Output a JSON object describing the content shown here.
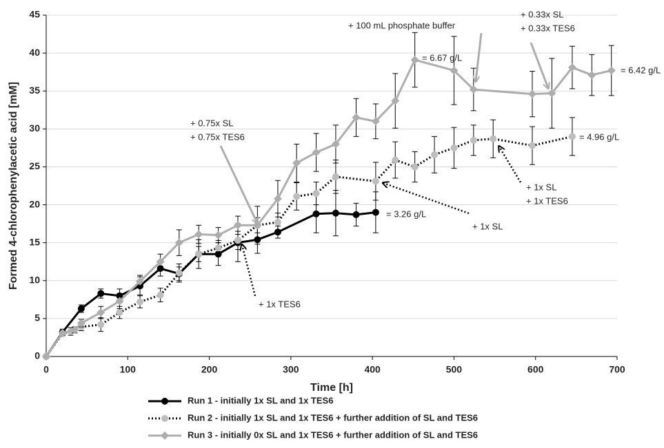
{
  "chart_data": {
    "type": "line",
    "x_label": "Time [h]",
    "y_label": "Formed 4-chlorophenylacetic acid [mM]",
    "xlim": [
      0,
      700
    ],
    "xticks": [
      0,
      100,
      200,
      300,
      400,
      500,
      600,
      700
    ],
    "ylim": [
      0,
      45
    ],
    "yticks": [
      0,
      5,
      10,
      15,
      20,
      25,
      30,
      35,
      40,
      45
    ],
    "grid": true,
    "legend": "bottom",
    "series": [
      {
        "name": "Run 1 - initially 1x SL and 1x TES6",
        "color": "#000000",
        "line_color": "#000000",
        "line_style": "solid",
        "marker": "circle",
        "x": [
          0,
          20,
          43,
          67,
          90,
          115,
          140,
          163,
          187,
          211,
          235,
          259,
          284,
          331,
          355,
          380,
          404
        ],
        "values": [
          0,
          3.2,
          6.3,
          8.3,
          8.0,
          9.3,
          11.6,
          10.9,
          13.5,
          13.5,
          15.0,
          15.4,
          16.4,
          18.8,
          18.9,
          18.7,
          19.0
        ],
        "errors": [
          0,
          0.4,
          0.5,
          0.6,
          0.9,
          1.2,
          1.0,
          0.9,
          1.9,
          1.5,
          2.5,
          1.8,
          0.8,
          2.5,
          3.0,
          1.5,
          2.7
        ]
      },
      {
        "name": "Run 2 - initially 1x SL and 1x TES6 + further addition of SL and TES6",
        "color": "#bdbdbd",
        "line_color": "#000000",
        "line_style": "dotted",
        "marker": "circle",
        "x": [
          0,
          20,
          30,
          43,
          67,
          90,
          115,
          140,
          163,
          187,
          211,
          235,
          259,
          284,
          307,
          331,
          355,
          404,
          428,
          452,
          476,
          500,
          524,
          548,
          596,
          645
        ],
        "values": [
          0,
          3.0,
          3.3,
          3.9,
          4.2,
          5.8,
          7.2,
          8.1,
          11.0,
          13.5,
          14.3,
          15.3,
          17.3,
          17.7,
          21.1,
          21.5,
          23.7,
          23.1,
          25.9,
          25.0,
          26.6,
          27.5,
          28.5,
          28.7,
          27.8,
          29.0
        ],
        "errors": [
          0,
          0.3,
          0.5,
          0.5,
          0.9,
          0.8,
          0.8,
          0.9,
          1.2,
          1.0,
          1.0,
          1.2,
          1.0,
          1.2,
          1.8,
          1.5,
          2.2,
          2.5,
          2.4,
          2.0,
          2.4,
          2.7,
          2.0,
          2.5,
          2.5,
          2.5
        ]
      },
      {
        "name": "Run 3 - initially 0x SL and 1x TES6 + further addition of SL and TES6",
        "color": "#adadad",
        "line_color": "#adadad",
        "line_style": "solid",
        "marker": "diamond",
        "x": [
          0,
          20,
          35,
          43,
          67,
          90,
          115,
          140,
          163,
          187,
          211,
          235,
          259,
          284,
          307,
          331,
          355,
          380,
          404,
          428,
          452,
          500,
          524,
          596,
          620,
          645,
          669,
          693
        ],
        "values": [
          0,
          3.1,
          3.5,
          4.4,
          5.8,
          7.3,
          9.9,
          12.5,
          15.0,
          16.1,
          16.0,
          17.3,
          17.3,
          20.8,
          25.5,
          26.9,
          28.0,
          31.5,
          31.0,
          33.7,
          39.1,
          37.7,
          35.2,
          34.6,
          34.7,
          38.1,
          37.1,
          37.7
        ],
        "errors": [
          0,
          0.3,
          0.4,
          0.5,
          0.8,
          1.0,
          0.8,
          1.0,
          1.7,
          1.2,
          1.0,
          1.2,
          2.5,
          2.4,
          2.5,
          2.5,
          2.5,
          2.5,
          2.3,
          3.6,
          3.6,
          4.5,
          2.8,
          3.0,
          4.6,
          2.8,
          2.7,
          3.3
        ]
      }
    ],
    "annotations": [
      {
        "lines": [
          "+ 100 mL phosphate buffer"
        ]
      },
      {
        "lines": [
          "+ 0.33x SL",
          "+ 0.33x TES6"
        ]
      },
      {
        "lines": [
          "= 6.67 g/L"
        ]
      },
      {
        "lines": [
          "= 6.42 g/L"
        ]
      },
      {
        "lines": [
          "+ 0.75x SL",
          "+ 0.75x TES6"
        ]
      },
      {
        "lines": [
          "= 4.96 g/L"
        ]
      },
      {
        "lines": [
          "+ 1x SL",
          "+ 1x TES6"
        ]
      },
      {
        "lines": [
          "= 3.26 g/L"
        ]
      },
      {
        "lines": [
          "+ 1x SL"
        ]
      },
      {
        "lines": [
          "+ 1x TES6"
        ]
      }
    ]
  }
}
